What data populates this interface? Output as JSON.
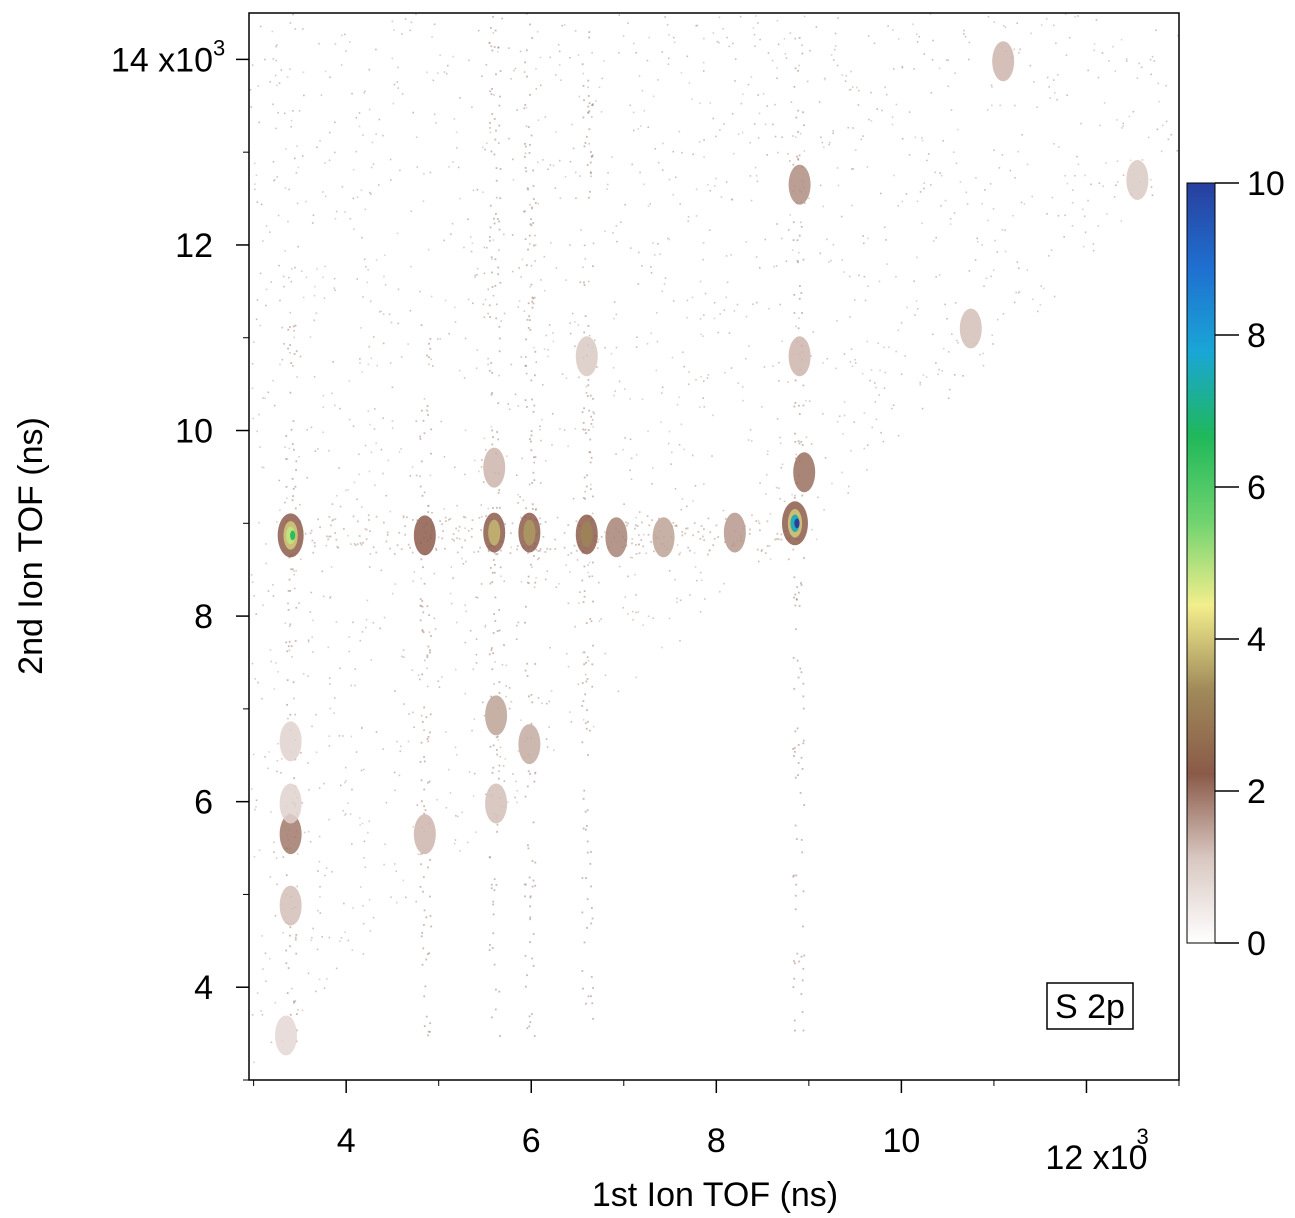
{
  "chart_data": {
    "type": "heatmap",
    "title": "",
    "xlabel": "1st Ion TOF (ns)",
    "ylabel": "2nd Ion TOF (ns)",
    "xlim": [
      2950,
      13000
    ],
    "ylim": [
      3000,
      14500
    ],
    "x_ticks": [
      4000,
      6000,
      8000,
      10000,
      12000
    ],
    "x_tick_labels": [
      "4",
      "6",
      "8",
      "10",
      "12 x10"
    ],
    "x_multiplier_exponent": "3",
    "y_ticks": [
      4000,
      6000,
      8000,
      10000,
      12000,
      14000
    ],
    "y_tick_labels": [
      "4",
      "6",
      "8",
      "10",
      "12",
      "14 x10"
    ],
    "y_multiplier_exponent": "3",
    "annotation": "S 2p",
    "colorbar": {
      "range": [
        0,
        10
      ],
      "ticks": [
        0,
        2,
        4,
        6,
        8,
        10
      ],
      "tick_labels": [
        "0",
        "2",
        "4",
        "6",
        "8",
        "10"
      ],
      "colors": [
        "#ffffff",
        "#d9c8c2",
        "#8a5a48",
        "#a08a5a",
        "#f2ee8c",
        "#6fd36f",
        "#1fb85a",
        "#1aa6d6",
        "#1f6fd0",
        "#283f9e"
      ]
    },
    "grid": false,
    "islands": [
      {
        "x": 3400,
        "y": 8870,
        "value": 6.5
      },
      {
        "x": 4850,
        "y": 8870,
        "value": 2.2
      },
      {
        "x": 5600,
        "y": 8900,
        "value": 3.8
      },
      {
        "x": 5980,
        "y": 8900,
        "value": 3.5
      },
      {
        "x": 6600,
        "y": 8880,
        "value": 3.2
      },
      {
        "x": 6920,
        "y": 8850,
        "value": 1.8
      },
      {
        "x": 7430,
        "y": 8850,
        "value": 1.5
      },
      {
        "x": 8200,
        "y": 8900,
        "value": 1.6
      },
      {
        "x": 8850,
        "y": 9000,
        "value": 10
      },
      {
        "x": 8950,
        "y": 9550,
        "value": 2.0
      },
      {
        "x": 8900,
        "y": 10800,
        "value": 1.3
      },
      {
        "x": 8900,
        "y": 12650,
        "value": 1.7
      },
      {
        "x": 5600,
        "y": 9600,
        "value": 1.3
      },
      {
        "x": 6600,
        "y": 10800,
        "value": 1.1
      },
      {
        "x": 10750,
        "y": 11100,
        "value": 1.2
      },
      {
        "x": 11100,
        "y": 13980,
        "value": 1.3
      },
      {
        "x": 12550,
        "y": 12700,
        "value": 1.1
      },
      {
        "x": 3400,
        "y": 5650,
        "value": 1.9
      },
      {
        "x": 3400,
        "y": 4880,
        "value": 1.2
      },
      {
        "x": 3400,
        "y": 6650,
        "value": 0.9
      },
      {
        "x": 3400,
        "y": 5980,
        "value": 0.9
      },
      {
        "x": 4850,
        "y": 5650,
        "value": 1.3
      },
      {
        "x": 5620,
        "y": 6930,
        "value": 1.5
      },
      {
        "x": 5980,
        "y": 6620,
        "value": 1.4
      },
      {
        "x": 5620,
        "y": 5980,
        "value": 1.2
      },
      {
        "x": 3350,
        "y": 3480,
        "value": 0.8
      }
    ]
  }
}
